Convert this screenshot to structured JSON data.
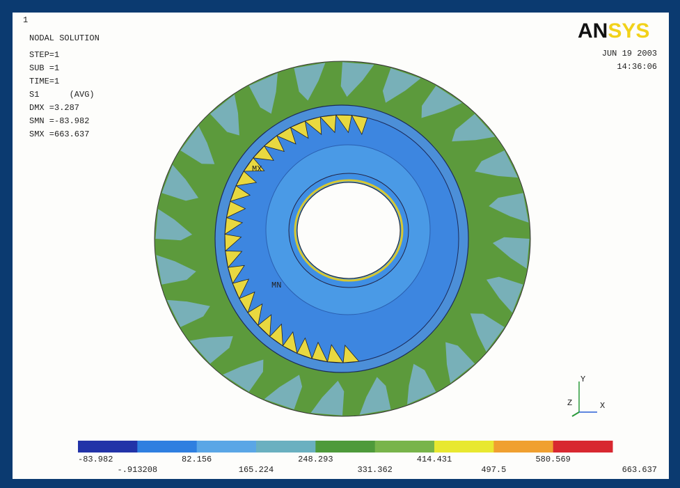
{
  "header": {
    "plot_number": "1",
    "title": "NODAL SOLUTION",
    "info": [
      "STEP=1",
      "SUB =1",
      "TIME=1",
      "S1      (AVG)",
      "DMX =3.287",
      "SMN =-83.982",
      "SMX =663.637"
    ]
  },
  "logo": {
    "part1": "AN",
    "part2": "SYS"
  },
  "timestamp": {
    "date": "JUN 19 2003",
    "time": "14:36:06"
  },
  "markers": {
    "max": "MX",
    "min": "MN"
  },
  "triad": {
    "y": "Y",
    "z": "Z",
    "x": "X"
  },
  "legend": {
    "colors": [
      "#2233a8",
      "#2f7fe0",
      "#5aa6e6",
      "#6ab0c0",
      "#4e9a3a",
      "#78b44a",
      "#e8e830",
      "#f0a030",
      "#d82830"
    ],
    "labels": [
      "-83.982",
      "-.913208",
      "82.156",
      "165.224",
      "248.293",
      "331.362",
      "414.431",
      "497.5",
      "580.569",
      "663.637"
    ]
  }
}
